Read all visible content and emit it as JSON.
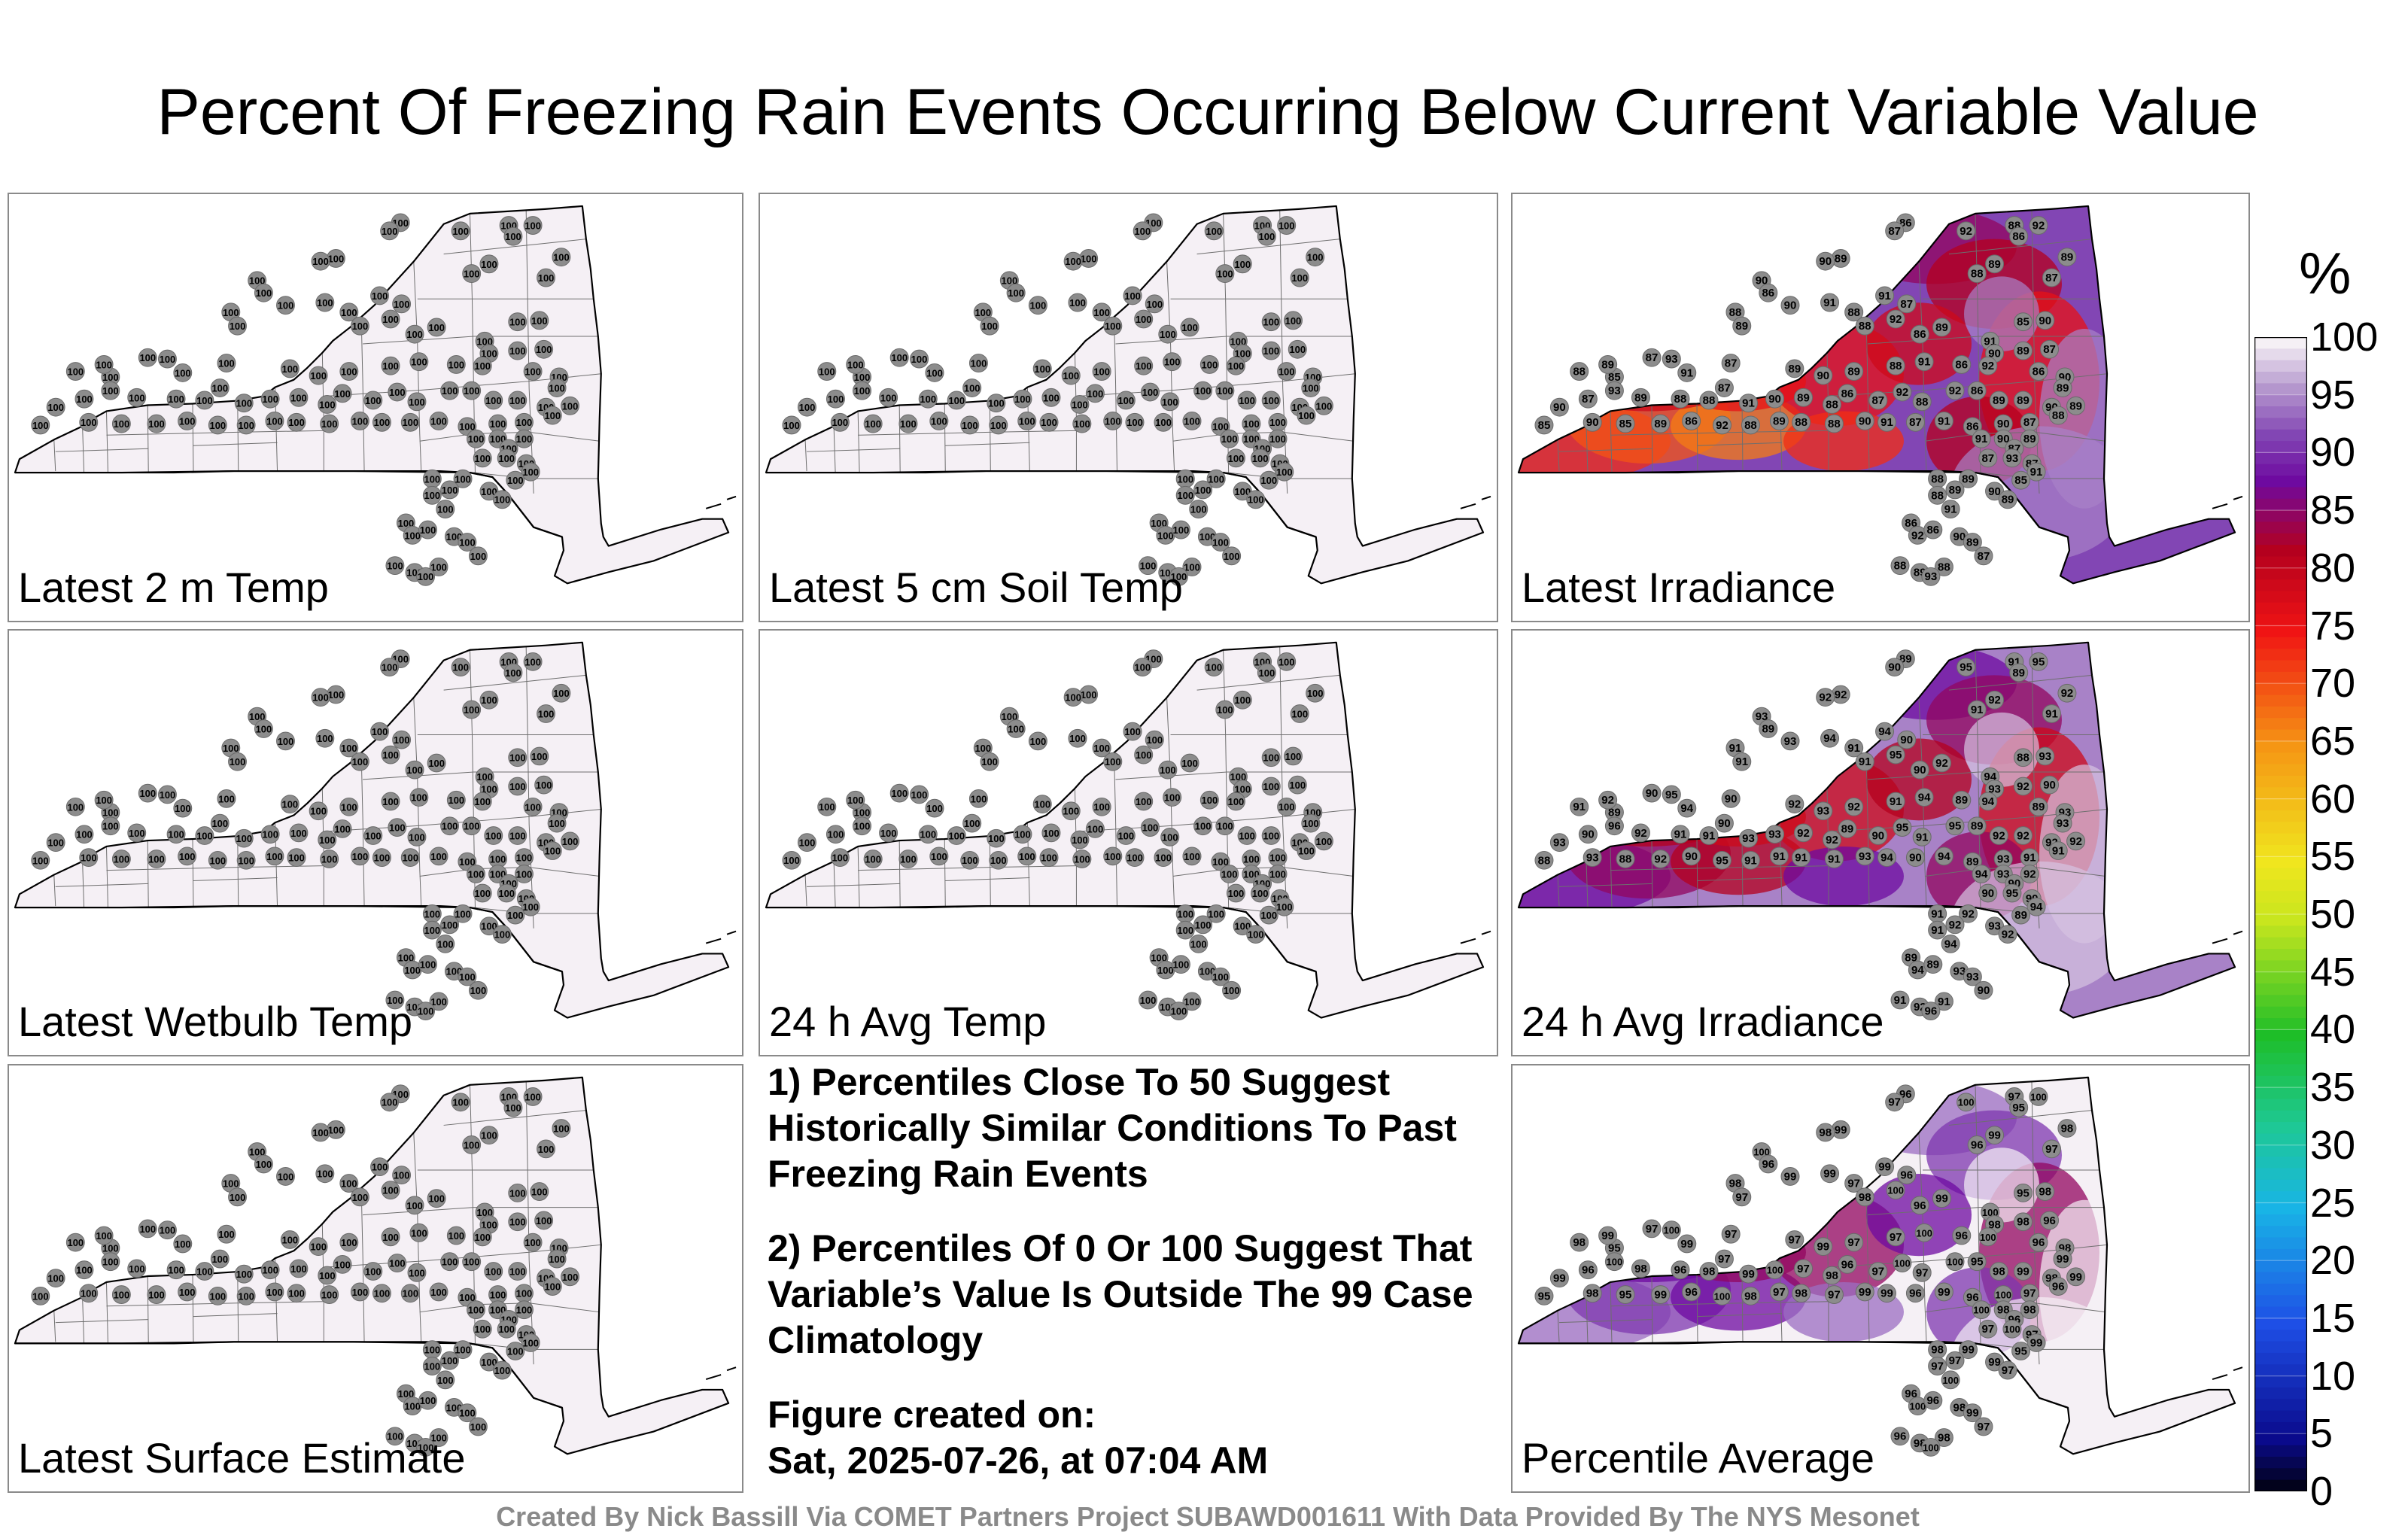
{
  "title": "Percent Of Freezing Rain Events Occurring Below Current Variable Value",
  "panels": [
    {
      "label": "Latest 2 m Temp",
      "value": 100
    },
    {
      "label": "Latest 5 cm Soil Temp",
      "value": 100
    },
    {
      "label": "Latest Irradiance",
      "value": 89
    },
    {
      "label": "Latest Wetbulb Temp",
      "value": 100
    },
    {
      "label": "24 h Avg Temp",
      "value": 100
    },
    {
      "label": "24 h Avg Irradiance",
      "value": 92
    },
    {
      "label": "Latest Surface Estimate",
      "value": 100
    },
    {
      "label": "Percentile Average",
      "value": 98
    }
  ],
  "notes": {
    "note1": "1) Percentiles Close To 50 Suggest Historically Similar Conditions To Past Freezing Rain Events",
    "note2": "2) Percentiles Of 0 Or 100 Suggest That Variable’s Value Is Outside The 99 Case Climatology",
    "created_label": "Figure created on:",
    "created_value": "Sat, 2025-07-26, at 07:04 AM"
  },
  "credit": "Created By Nick Bassill Via COMET Partners Project SUBAWD001611 With Data Provided By The NYS Mesonet",
  "colorbar": {
    "unit": "%",
    "ticks": [
      "100",
      "95",
      "90",
      "85",
      "80",
      "75",
      "70",
      "65",
      "60",
      "55",
      "50",
      "45",
      "40",
      "35",
      "30",
      "25",
      "20",
      "15",
      "10",
      "5",
      "0"
    ],
    "stops": [
      {
        "v": 0,
        "c": "#000000"
      },
      {
        "v": 5,
        "c": "#0a0a8c"
      },
      {
        "v": 15,
        "c": "#1e4fe6"
      },
      {
        "v": 25,
        "c": "#18b4e6"
      },
      {
        "v": 32,
        "c": "#1ec896"
      },
      {
        "v": 40,
        "c": "#1ebe28"
      },
      {
        "v": 50,
        "c": "#c8e61e"
      },
      {
        "v": 55,
        "c": "#f0e61e"
      },
      {
        "v": 65,
        "c": "#f59614"
      },
      {
        "v": 75,
        "c": "#f01414"
      },
      {
        "v": 82,
        "c": "#b4001e"
      },
      {
        "v": 88,
        "c": "#6e0aa0"
      },
      {
        "v": 92,
        "c": "#8246b4"
      },
      {
        "v": 96,
        "c": "#b496cd"
      },
      {
        "v": 100,
        "c": "#f5f0f5"
      }
    ]
  }
}
